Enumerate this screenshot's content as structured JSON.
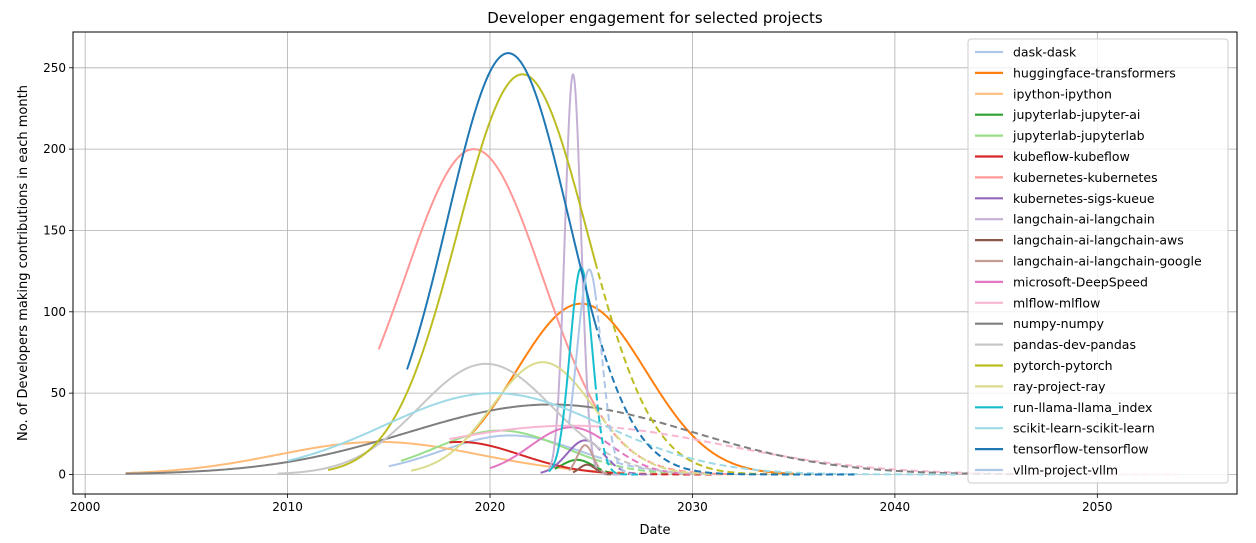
{
  "chart_data": {
    "type": "line",
    "title": "Developer engagement for selected projects",
    "xlabel": "Date",
    "ylabel": "No. of Developers making contributions in each month",
    "xlim": [
      1999.4,
      2056.9
    ],
    "ylim": [
      -12,
      272
    ],
    "xticks": [
      2000,
      2010,
      2020,
      2030,
      2040,
      2050
    ],
    "yticks": [
      0,
      50,
      100,
      150,
      200,
      250
    ],
    "grid": true,
    "legend_position": "upper right",
    "series": [
      {
        "name": "dask-dask",
        "color": "#aec7e8",
        "peak": 24,
        "mu": 2021.0,
        "sigma": 3.4,
        "solid": [
          2015,
          2025.2
        ],
        "dashed_end": 2030
      },
      {
        "name": "huggingface-transformers",
        "color": "#ff7f0e",
        "peak": 105,
        "mu": 2024.5,
        "sigma": 3.2,
        "solid": [
          2018.9,
          2035
        ],
        "dashed_end": 2035
      },
      {
        "name": "ipython-ipython",
        "color": "#ffbb78",
        "peak": 20,
        "mu": 2014.5,
        "sigma": 5.0,
        "solid": [
          2002,
          2025.2
        ],
        "dashed_end": 2032
      },
      {
        "name": "jupyterlab-jupyter-ai",
        "color": "#2ca02c",
        "peak": 9,
        "mu": 2024.3,
        "sigma": 0.8,
        "solid": [
          2023.2,
          2025.2
        ],
        "dashed_end": 2026.5
      },
      {
        "name": "jupyterlab-jupyterlab",
        "color": "#98df8a",
        "peak": 27,
        "mu": 2020.5,
        "sigma": 3.2,
        "solid": [
          2015.6,
          2025.2
        ],
        "dashed_end": 2030
      },
      {
        "name": "kubeflow-kubeflow",
        "color": "#d62728",
        "peak": 20,
        "mu": 2018.5,
        "sigma": 3.0,
        "solid": [
          2018,
          2025.2
        ],
        "dashed_end": 2031
      },
      {
        "name": "kubernetes-kubernetes",
        "color": "#ff9896",
        "peak": 200,
        "mu": 2019.2,
        "sigma": 3.4,
        "solid": [
          2014.5,
          2025.2
        ],
        "dashed_end": 2032
      },
      {
        "name": "kubernetes-sigs-kueue",
        "color": "#9467bd",
        "peak": 21,
        "mu": 2024.7,
        "sigma": 0.9,
        "solid": [
          2022.5,
          2025.2
        ],
        "dashed_end": 2028
      },
      {
        "name": "langchain-ai-langchain",
        "color": "#c5b0d5",
        "peak": 246,
        "mu": 2024.1,
        "sigma": 0.4,
        "solid": [
          2022.9,
          2025.2
        ],
        "dashed_end": 2026.5
      },
      {
        "name": "langchain-ai-langchain-aws",
        "color": "#8c564b",
        "peak": 6,
        "mu": 2024.8,
        "sigma": 0.4,
        "solid": [
          2024.1,
          2025.2
        ],
        "dashed_end": 2026
      },
      {
        "name": "langchain-ai-langchain-google",
        "color": "#c49c94",
        "peak": 18,
        "mu": 2024.7,
        "sigma": 0.4,
        "solid": [
          2023.9,
          2025.2
        ],
        "dashed_end": 2026
      },
      {
        "name": "microsoft-DeepSpeed",
        "color": "#e377c2",
        "peak": 29,
        "mu": 2024.0,
        "sigma": 2.0,
        "solid": [
          2020,
          2025.2
        ],
        "dashed_end": 2030
      },
      {
        "name": "mlflow-mlflow",
        "color": "#f7b6d2",
        "peak": 30,
        "mu": 2024.0,
        "sigma": 7.5,
        "solid": [
          2018,
          2025.2
        ],
        "dashed_end": 2054
      },
      {
        "name": "numpy-numpy",
        "color": "#7f7f7f",
        "peak": 43,
        "mu": 2023.0,
        "sigma": 7.0,
        "solid": [
          2002,
          2025.2
        ],
        "dashed_end": 2046
      },
      {
        "name": "pandas-dev-pandas",
        "color": "#c7c7c7",
        "peak": 68,
        "mu": 2019.8,
        "sigma": 3.3,
        "solid": [
          2009.5,
          2025.2
        ],
        "dashed_end": 2031
      },
      {
        "name": "pytorch-pytorch",
        "color": "#bcbd22",
        "peak": 246,
        "mu": 2021.6,
        "sigma": 3.2,
        "solid": [
          2012,
          2025.2
        ],
        "dashed_end": 2038
      },
      {
        "name": "ray-project-ray",
        "color": "#dbdb8d",
        "peak": 69,
        "mu": 2022.6,
        "sigma": 2.5,
        "solid": [
          2016.1,
          2025.2
        ],
        "dashed_end": 2031
      },
      {
        "name": "run-llama-llama_index",
        "color": "#17becf",
        "peak": 127,
        "mu": 2024.5,
        "sigma": 0.55,
        "solid": [
          2022.9,
          2025.2
        ],
        "dashed_end": 2027.5
      },
      {
        "name": "scikit-learn-scikit-learn",
        "color": "#9edae5",
        "peak": 50,
        "mu": 2020.2,
        "sigma": 5.4,
        "solid": [
          2010,
          2025.2
        ],
        "dashed_end": 2043
      },
      {
        "name": "tensorflow-tensorflow",
        "color": "#1f77b4",
        "peak": 259,
        "mu": 2020.9,
        "sigma": 3.0,
        "solid": [
          2015.9,
          2025.2
        ],
        "dashed_end": 2038
      },
      {
        "name": "vllm-project-vllm",
        "color": "#aec7e8",
        "peak": 126,
        "mu": 2024.9,
        "sigma": 0.6,
        "solid": [
          2023.9,
          2025.2
        ],
        "dashed_end": 2027
      }
    ]
  }
}
